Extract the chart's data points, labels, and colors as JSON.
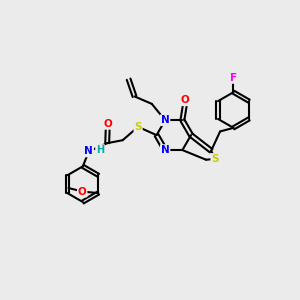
{
  "background_color": "#ebebeb",
  "atom_colors": {
    "C": "#000000",
    "N": "#0000ff",
    "O": "#ff0000",
    "S": "#cccc00",
    "F": "#ff00ff",
    "H": "#00aaaa"
  },
  "figsize": [
    3.0,
    3.0
  ],
  "dpi": 100
}
